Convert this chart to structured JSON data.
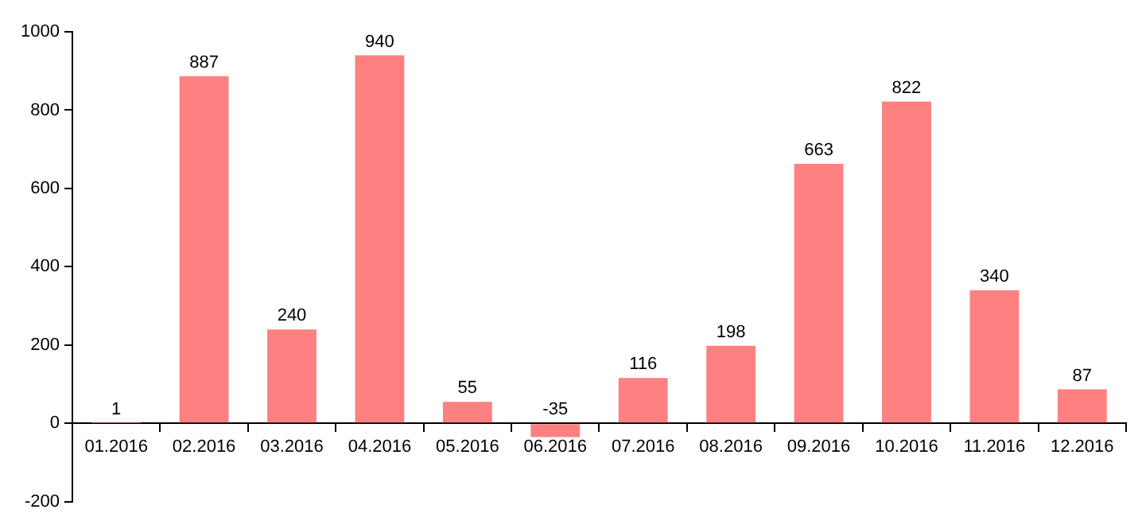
{
  "chart_data": {
    "type": "bar",
    "categories": [
      "01.2016",
      "02.2016",
      "03.2016",
      "04.2016",
      "05.2016",
      "06.2016",
      "07.2016",
      "08.2016",
      "09.2016",
      "10.2016",
      "11.2016",
      "12.2016"
    ],
    "values": [
      1,
      887,
      240,
      940,
      55,
      -35,
      116,
      198,
      663,
      822,
      340,
      87
    ],
    "color": "#ff8080",
    "ylim": [
      -200,
      1000
    ],
    "yticks": [
      -200,
      0,
      200,
      400,
      600,
      800,
      1000
    ],
    "grid": false,
    "legend": false,
    "data_labels": true
  }
}
